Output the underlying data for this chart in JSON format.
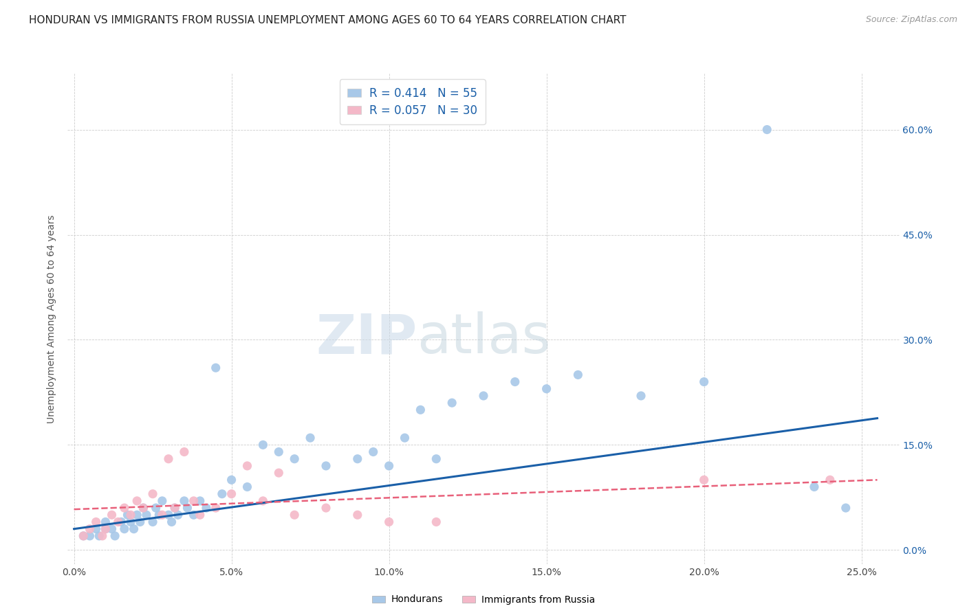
{
  "title": "HONDURAN VS IMMIGRANTS FROM RUSSIA UNEMPLOYMENT AMONG AGES 60 TO 64 YEARS CORRELATION CHART",
  "source": "Source: ZipAtlas.com",
  "ylabel": "Unemployment Among Ages 60 to 64 years",
  "xlabel_ticks": [
    "0.0%",
    "5.0%",
    "10.0%",
    "15.0%",
    "20.0%",
    "25.0%"
  ],
  "xlabel_vals": [
    0.0,
    0.05,
    0.1,
    0.15,
    0.2,
    0.25
  ],
  "ylabel_ticks": [
    "0.0%",
    "15.0%",
    "30.0%",
    "45.0%",
    "60.0%"
  ],
  "ylabel_vals": [
    0.0,
    0.15,
    0.3,
    0.45,
    0.6
  ],
  "xlim": [
    -0.002,
    0.262
  ],
  "ylim": [
    -0.02,
    0.68
  ],
  "honduran_color": "#a8c8e8",
  "russia_color": "#f4b8c8",
  "trendline_blue": "#1a5fa8",
  "trendline_pink": "#e8607a",
  "legend_R_blue": "0.414",
  "legend_N_blue": "55",
  "legend_R_pink": "0.057",
  "legend_N_pink": "30",
  "legend_label_blue": "Hondurans",
  "legend_label_pink": "Immigrants from Russia",
  "watermark_zip": "ZIP",
  "watermark_atlas": "atlas",
  "honduran_x": [
    0.003,
    0.005,
    0.007,
    0.008,
    0.01,
    0.01,
    0.012,
    0.013,
    0.015,
    0.016,
    0.017,
    0.018,
    0.019,
    0.02,
    0.021,
    0.022,
    0.023,
    0.025,
    0.026,
    0.027,
    0.028,
    0.03,
    0.031,
    0.032,
    0.033,
    0.035,
    0.036,
    0.038,
    0.04,
    0.042,
    0.045,
    0.047,
    0.05,
    0.055,
    0.06,
    0.065,
    0.07,
    0.075,
    0.08,
    0.09,
    0.095,
    0.1,
    0.105,
    0.11,
    0.115,
    0.12,
    0.13,
    0.14,
    0.15,
    0.16,
    0.18,
    0.2,
    0.22,
    0.235,
    0.245
  ],
  "honduran_y": [
    0.02,
    0.02,
    0.03,
    0.02,
    0.03,
    0.04,
    0.03,
    0.02,
    0.04,
    0.03,
    0.05,
    0.04,
    0.03,
    0.05,
    0.04,
    0.06,
    0.05,
    0.04,
    0.06,
    0.05,
    0.07,
    0.05,
    0.04,
    0.06,
    0.05,
    0.07,
    0.06,
    0.05,
    0.07,
    0.06,
    0.26,
    0.08,
    0.1,
    0.09,
    0.15,
    0.14,
    0.13,
    0.16,
    0.12,
    0.13,
    0.14,
    0.12,
    0.16,
    0.2,
    0.13,
    0.21,
    0.22,
    0.24,
    0.23,
    0.25,
    0.22,
    0.24,
    0.6,
    0.09,
    0.06
  ],
  "russia_x": [
    0.003,
    0.005,
    0.007,
    0.009,
    0.01,
    0.012,
    0.014,
    0.016,
    0.018,
    0.02,
    0.022,
    0.025,
    0.028,
    0.03,
    0.032,
    0.035,
    0.038,
    0.04,
    0.045,
    0.05,
    0.055,
    0.06,
    0.065,
    0.07,
    0.08,
    0.09,
    0.1,
    0.115,
    0.2,
    0.24
  ],
  "russia_y": [
    0.02,
    0.03,
    0.04,
    0.02,
    0.03,
    0.05,
    0.04,
    0.06,
    0.05,
    0.07,
    0.06,
    0.08,
    0.05,
    0.13,
    0.06,
    0.14,
    0.07,
    0.05,
    0.06,
    0.08,
    0.12,
    0.07,
    0.11,
    0.05,
    0.06,
    0.05,
    0.04,
    0.04,
    0.1,
    0.1
  ],
  "blue_trend_x": [
    0.0,
    0.255
  ],
  "blue_trend_y": [
    0.03,
    0.188
  ],
  "pink_trend_x": [
    0.0,
    0.255
  ],
  "pink_trend_y": [
    0.058,
    0.1
  ],
  "title_fontsize": 11,
  "axis_label_fontsize": 10,
  "tick_fontsize": 10,
  "source_fontsize": 9,
  "legend_fontsize": 12
}
